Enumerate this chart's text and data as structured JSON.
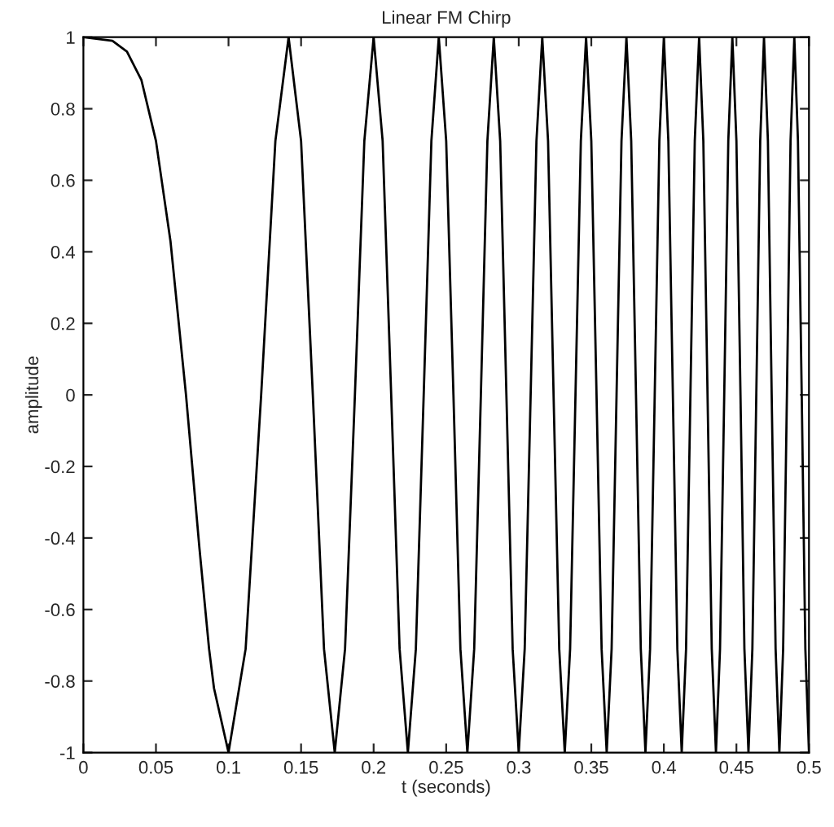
{
  "chart_data": {
    "type": "line",
    "title": "Linear FM Chirp",
    "xlabel": "t (seconds)",
    "ylabel": "amplitude",
    "x": [
      0,
      0.02,
      0.03,
      0.04,
      0.05,
      0.06,
      0.0707,
      0.08,
      0.0866,
      0.09,
      0.1,
      0.1118,
      0.1225,
      0.1323,
      0.1414,
      0.15,
      0.1581,
      0.1658,
      0.1732,
      0.1803,
      0.1871,
      0.1936,
      0.2,
      0.2062,
      0.2121,
      0.2179,
      0.2236,
      0.2291,
      0.2345,
      0.2398,
      0.2449,
      0.25,
      0.255,
      0.2598,
      0.2646,
      0.2693,
      0.2739,
      0.2784,
      0.2828,
      0.2872,
      0.2915,
      0.2958,
      0.3,
      0.3041,
      0.3082,
      0.3122,
      0.3162,
      0.3202,
      0.324,
      0.3279,
      0.3317,
      0.3354,
      0.3391,
      0.3428,
      0.3464,
      0.35,
      0.3536,
      0.3571,
      0.3606,
      0.364,
      0.3674,
      0.3708,
      0.3742,
      0.3775,
      0.3808,
      0.3841,
      0.3873,
      0.3905,
      0.3937,
      0.3969,
      0.4,
      0.4031,
      0.4062,
      0.4093,
      0.4123,
      0.4153,
      0.4183,
      0.4213,
      0.4243,
      0.4272,
      0.4301,
      0.433,
      0.4359,
      0.4387,
      0.4416,
      0.4444,
      0.4472,
      0.45,
      0.4528,
      0.4555,
      0.4583,
      0.461,
      0.4637,
      0.4664,
      0.469,
      0.4717,
      0.4743,
      0.477,
      0.4796,
      0.4822,
      0.4848,
      0.4873,
      0.4899,
      0.4924,
      0.495,
      0.4975,
      0.5
    ],
    "series": [
      {
        "color": "#000000",
        "values": [
          1,
          0.99,
          0.96,
          0.88,
          0.71,
          0.43,
          0,
          -0.43,
          -0.71,
          -0.82,
          -1,
          -0.71,
          0,
          0.71,
          1,
          0.71,
          0,
          -0.71,
          -1,
          -0.71,
          0,
          0.71,
          1,
          0.71,
          0,
          -0.71,
          -1,
          -0.71,
          0,
          0.71,
          1,
          0.71,
          0,
          -0.71,
          -1,
          -0.71,
          0,
          0.71,
          1,
          0.71,
          0,
          -0.71,
          -1,
          -0.71,
          0,
          0.71,
          1,
          0.71,
          0,
          -0.71,
          -1,
          -0.71,
          0,
          0.71,
          1,
          0.71,
          0,
          -0.71,
          -1,
          -0.71,
          0,
          0.71,
          1,
          0.71,
          0,
          -0.71,
          -1,
          -0.71,
          0,
          0.71,
          1,
          0.71,
          0,
          -0.71,
          -1,
          -0.71,
          0,
          0.71,
          1,
          0.71,
          0,
          -0.71,
          -1,
          -0.71,
          0,
          0.71,
          1,
          0.71,
          0,
          -0.71,
          -1,
          -0.71,
          0,
          0.71,
          1,
          0.71,
          0,
          -0.71,
          -1,
          -0.71,
          0,
          0.71,
          1,
          0.71,
          0,
          -0.71,
          -1
        ]
      }
    ],
    "xlim": [
      0,
      0.5
    ],
    "xticks": [
      0,
      0.05,
      0.1,
      0.15,
      0.2,
      0.25,
      0.3,
      0.35,
      0.4,
      0.45,
      0.5
    ],
    "ylim": [
      -1,
      1
    ],
    "yticks": [
      -1,
      -0.8,
      -0.6,
      -0.4,
      -0.2,
      0,
      0.2,
      0.4,
      0.6,
      0.8,
      1
    ],
    "grid": false,
    "legend": false,
    "marker": "none",
    "line_style": "solid"
  }
}
